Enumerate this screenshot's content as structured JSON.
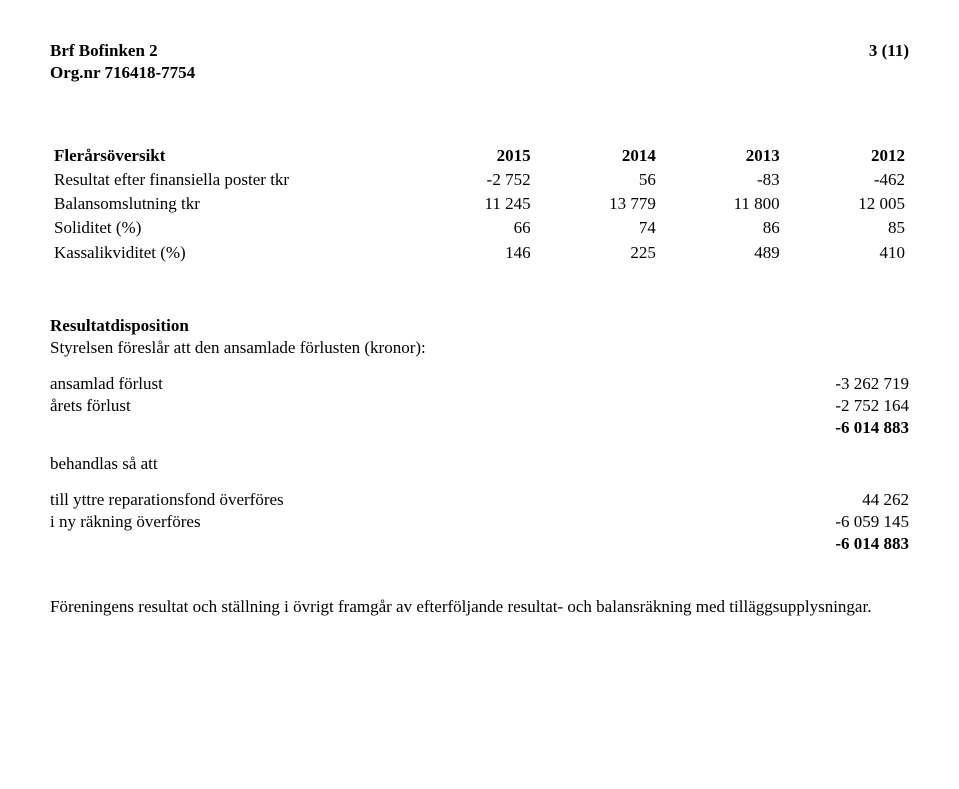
{
  "header": {
    "org_name": "Brf Bofinken 2",
    "page_no": "3 (11)",
    "org_nr": "Org.nr 716418-7754"
  },
  "overview": {
    "title": "Flerårsöversikt",
    "years": [
      "2015",
      "2014",
      "2013",
      "2012"
    ],
    "rows": [
      {
        "label": "Resultat efter finansiella poster tkr",
        "vals": [
          "-2 752",
          "56",
          "-83",
          "-462"
        ]
      },
      {
        "label": "Balansomslutning  tkr",
        "vals": [
          "11 245",
          "13 779",
          "11 800",
          "12 005"
        ]
      },
      {
        "label": "Soliditet (%)",
        "vals": [
          "66",
          "74",
          "86",
          "85"
        ]
      },
      {
        "label": "Kassalikviditet (%)",
        "vals": [
          "146",
          "225",
          "489",
          "410"
        ]
      }
    ]
  },
  "disposition": {
    "title": "Resultatdisposition",
    "intro": "Styrelsen föreslår att den ansamlade förlusten (kronor):",
    "block1": [
      {
        "label": "ansamlad förlust",
        "val": "-3 262 719"
      },
      {
        "label": "årets förlust",
        "val": "-2 752 164"
      },
      {
        "label": "",
        "val": "-6 014 883",
        "bold": true
      }
    ],
    "mid_label": "behandlas så att",
    "block2": [
      {
        "label": "till yttre reparationsfond överföres",
        "val": "44 262"
      },
      {
        "label": "i ny räkning överföres",
        "val": "-6 059 145"
      },
      {
        "label": "",
        "val": "-6 014 883",
        "bold": true
      }
    ]
  },
  "closing": "Föreningens resultat och ställning i övrigt framgår av efterföljande resultat- och balansräkning med tilläggsupplysningar."
}
